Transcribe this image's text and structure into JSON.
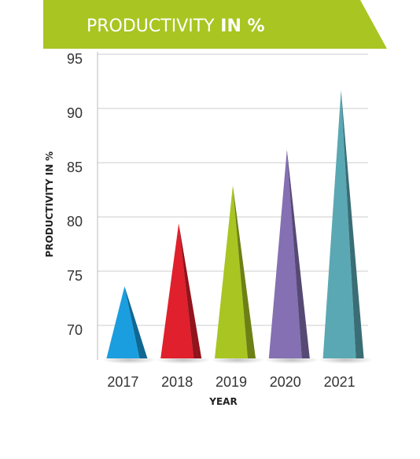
{
  "chart_data": {
    "type": "bar",
    "title": "PRODUCTIVITY",
    "title_bold": " IN %",
    "xlabel": "YEAR",
    "ylabel": "PRODUCTIVITY IN %",
    "categories": [
      "2017",
      "2018",
      "2019",
      "2020",
      "2021"
    ],
    "values": [
      73.6,
      79.4,
      82.9,
      86.2,
      91.7
    ],
    "colors": [
      "#1a9ee0",
      "#e0202c",
      "#a8c522",
      "#8470b2",
      "#5aa8b4"
    ],
    "yticks": [
      70,
      75,
      80,
      85,
      90,
      95
    ],
    "ylim": [
      67,
      95
    ],
    "grid": true,
    "banner_color": "#a8c522"
  }
}
